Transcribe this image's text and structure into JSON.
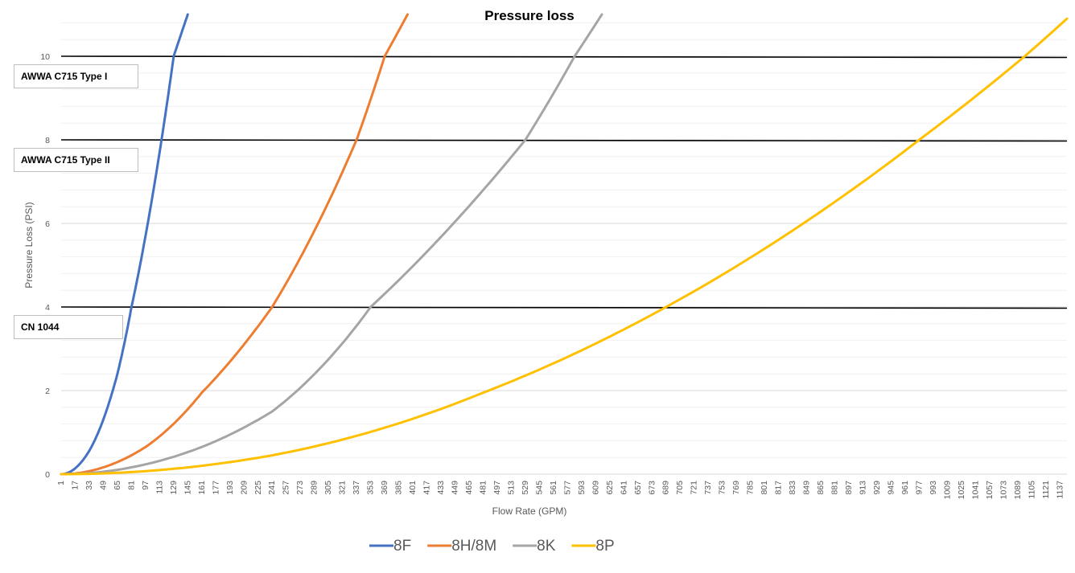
{
  "chart_data": {
    "type": "line",
    "title": "Pressure loss",
    "xlabel": "Flow Rate (GPM)",
    "ylabel": "Pressure Loss (PSI)",
    "ylim": [
      0,
      11
    ],
    "xlim": [
      1,
      1145
    ],
    "y_ticks": [
      0,
      2,
      4,
      6,
      8,
      10
    ],
    "x_tick_labels": [
      1,
      17,
      33,
      49,
      65,
      81,
      97,
      113,
      129,
      145,
      161,
      177,
      193,
      209,
      225,
      241,
      257,
      273,
      289,
      305,
      321,
      337,
      353,
      369,
      385,
      401,
      417,
      433,
      449,
      465,
      481,
      497,
      513,
      529,
      545,
      561,
      577,
      593,
      609,
      625,
      641,
      657,
      673,
      689,
      705,
      721,
      737,
      753,
      769,
      785,
      801,
      817,
      833,
      849,
      865,
      881,
      897,
      913,
      929,
      945,
      961,
      977,
      993,
      1009,
      1025,
      1041,
      1057,
      1073,
      1089,
      1105,
      1121,
      1137
    ],
    "grid": "horizontal",
    "legend": "bottom",
    "series": [
      {
        "name": "8F",
        "color": "#4472C4",
        "x": [
          1,
          33,
          65,
          81,
          129,
          145
        ],
        "y": [
          0,
          0.56,
          2.4,
          4.0,
          10.0,
          11.0
        ]
      },
      {
        "name": "8H/8M",
        "color": "#ED7D31",
        "x": [
          1,
          97,
          161,
          241,
          337,
          369,
          395
        ],
        "y": [
          0,
          0.65,
          1.95,
          4.0,
          8.0,
          10.0,
          11.0
        ]
      },
      {
        "name": "8K",
        "color": "#A5A5A5",
        "x": [
          1,
          161,
          241,
          353,
          529,
          585,
          616
        ],
        "y": [
          0,
          0.65,
          1.5,
          4.0,
          8.0,
          10.0,
          11.0
        ]
      },
      {
        "name": "8P",
        "color": "#FFC000",
        "x": [
          1,
          241,
          481,
          689,
          977,
          1097,
          1145
        ],
        "y": [
          0,
          0.45,
          1.95,
          4.0,
          8.0,
          10.0,
          10.9
        ]
      }
    ],
    "reference_lines": [
      {
        "label": "AWWA C715 Type I",
        "y": 10.0
      },
      {
        "label": "AWWA C715 Type II",
        "y": 8.0
      },
      {
        "label": "CN 1044",
        "y": 4.0
      }
    ]
  }
}
